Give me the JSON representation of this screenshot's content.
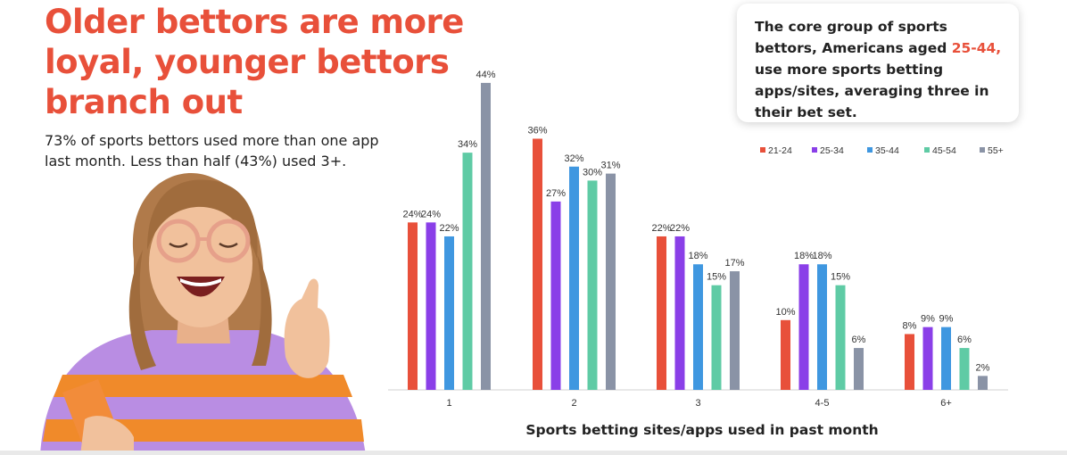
{
  "headline": "Older bettors are more loyal, younger bettors branch out",
  "subtext": "73% of sports bettors used more than one app last month. Less than half (43%) used 3+.",
  "callout": {
    "before": "The core group of sports bettors, Americans aged ",
    "highlight": "25-44,",
    "after": " use more sports betting apps/sites, averaging three in their bet set."
  },
  "colors": {
    "accent": "#e8503a",
    "series": [
      "#e8503a",
      "#8a3fe8",
      "#3f97e0",
      "#5fcba5",
      "#8a93a6"
    ]
  },
  "chart_data": {
    "type": "bar",
    "categories": [
      "1",
      "2",
      "3",
      "4-5",
      "6+"
    ],
    "series": [
      {
        "name": "21-24",
        "values": [
          24,
          36,
          22,
          10,
          8
        ]
      },
      {
        "name": "25-34",
        "values": [
          24,
          27,
          22,
          18,
          9
        ]
      },
      {
        "name": "35-44",
        "values": [
          22,
          32,
          18,
          18,
          9
        ]
      },
      {
        "name": "45-54",
        "values": [
          34,
          30,
          15,
          15,
          6
        ]
      },
      {
        "name": "55+",
        "values": [
          44,
          31,
          17,
          6,
          2
        ]
      }
    ],
    "data_label_suffix": "%",
    "xlabel": "Sports betting sites/apps used in past month",
    "ylabel": "",
    "ylim": [
      0,
      44
    ],
    "grid": false,
    "legend_position": "top-right"
  }
}
